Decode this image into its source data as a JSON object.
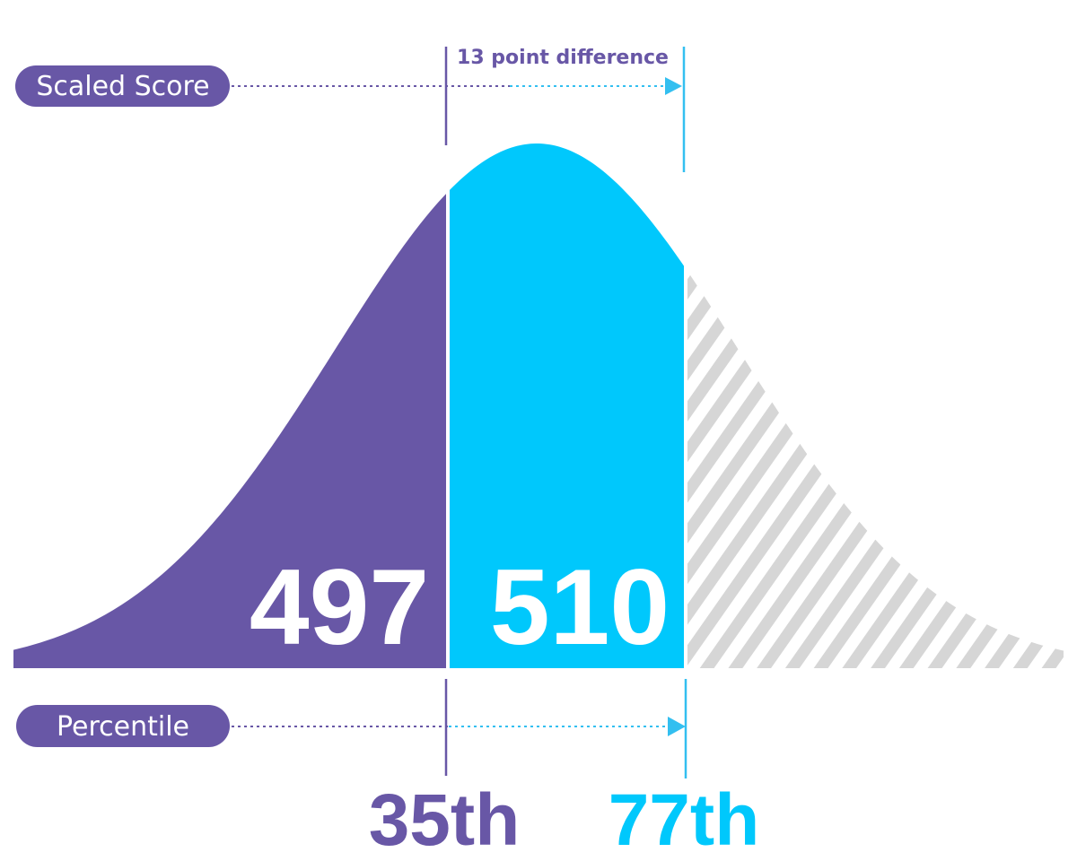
{
  "colors": {
    "purple": "#6857a6",
    "cyan": "#00c8fc",
    "cyan_line": "#33bff0",
    "hatch": "#d6d6d6",
    "white": "#ffffff"
  },
  "labels": {
    "scaled_score": "Scaled Score",
    "percentile": "Percentile",
    "difference": "13 point difference"
  },
  "scores": {
    "low": "497",
    "high": "510"
  },
  "percentiles": {
    "low": "35th",
    "high": "77th"
  }
}
